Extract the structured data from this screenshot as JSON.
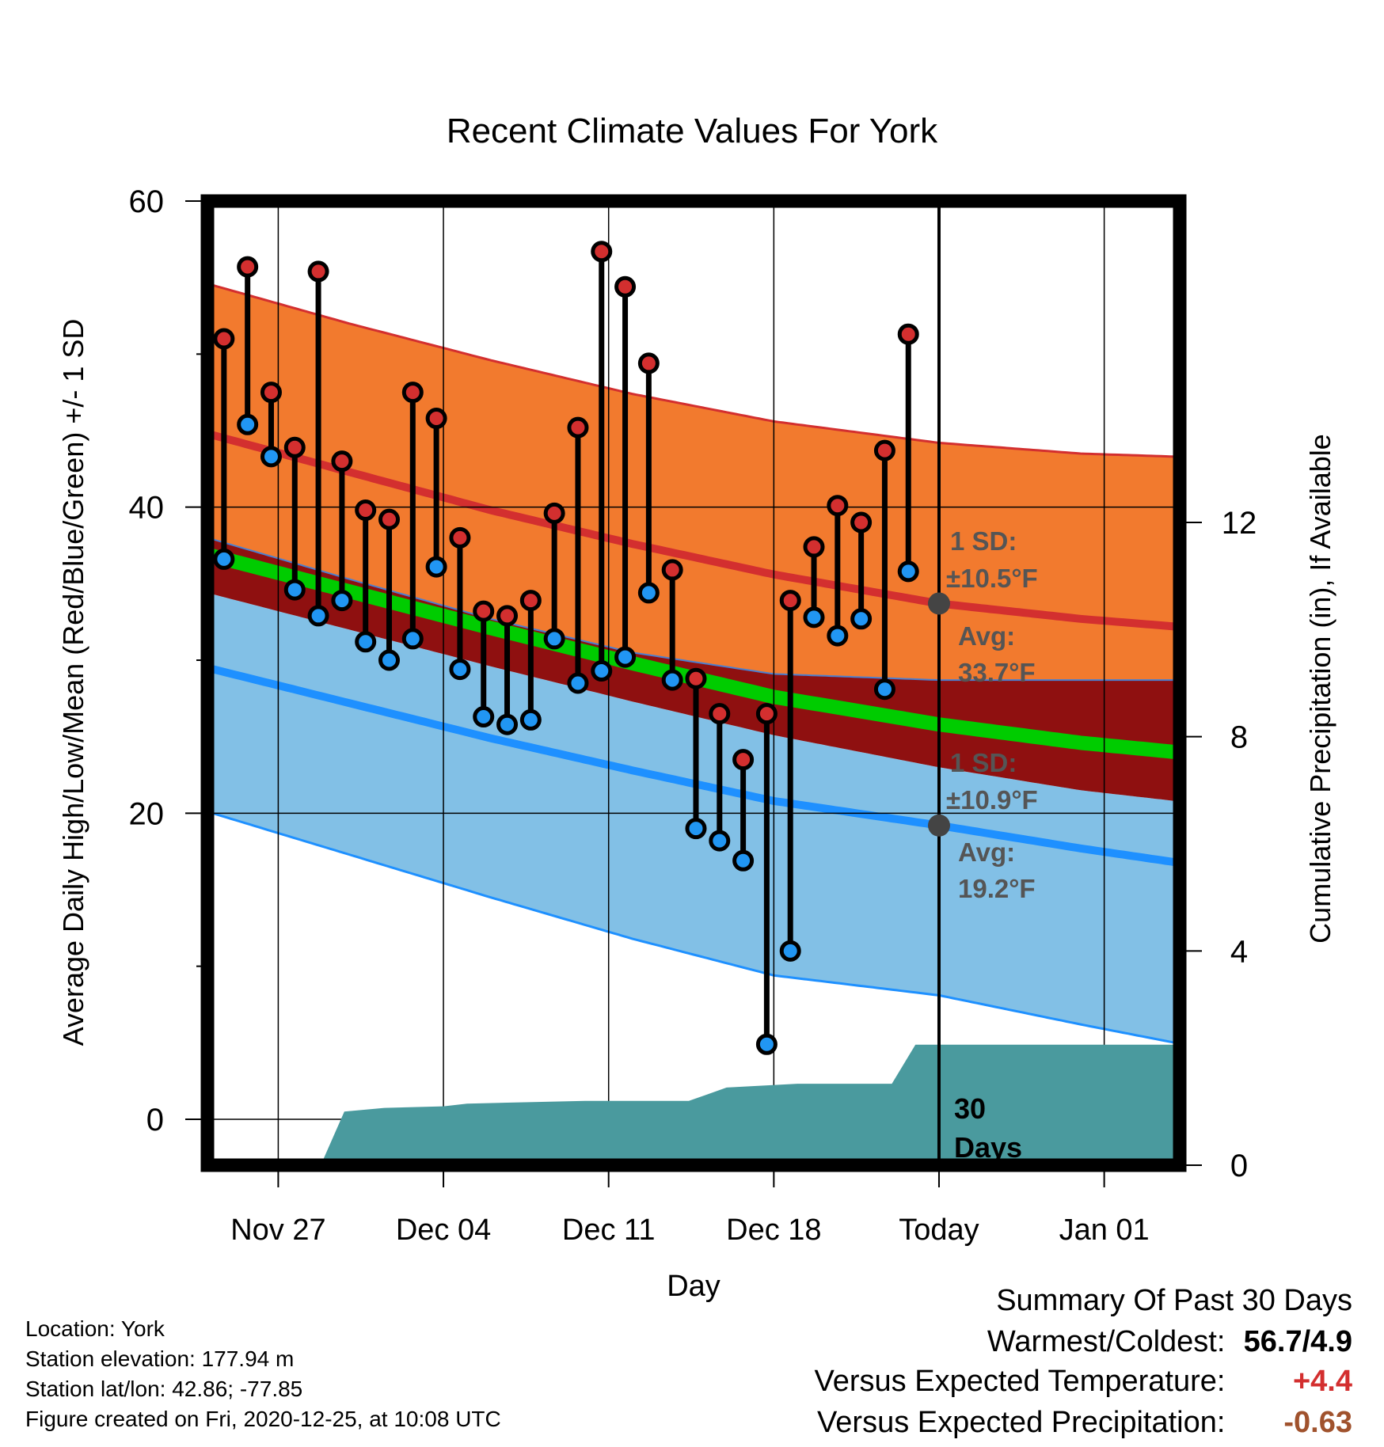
{
  "chart_data": {
    "type": "line",
    "title": "Recent Climate Values For York",
    "xlabel": "Day",
    "ylabel": "Average Daily High/Low/Mean (Red/Blue/Green) +/- 1 SD",
    "y2label": "Cumulative Precipitation (in), If Available",
    "ylim": [
      -3,
      60
    ],
    "y2lim": [
      0,
      18
    ],
    "xticks": [
      {
        "day": 3,
        "label": "Nov 27"
      },
      {
        "day": 10,
        "label": "Dec 04"
      },
      {
        "day": 17,
        "label": "Dec 11"
      },
      {
        "day": 24,
        "label": "Dec 18"
      },
      {
        "day": 31,
        "label": "Today"
      },
      {
        "day": 38,
        "label": "Jan 01"
      }
    ],
    "yticks": [
      0,
      20,
      40,
      60
    ],
    "y2ticks": [
      0,
      4,
      8,
      12
    ],
    "grid": true,
    "x_domain": [
      0,
      41.2
    ],
    "normal_high": {
      "days": [
        0,
        6,
        12,
        18,
        24,
        31,
        37,
        41
      ],
      "mean": [
        44.8,
        42.3,
        39.8,
        37.6,
        35.6,
        33.7,
        32.7,
        32.2
      ],
      "upper": [
        54.6,
        52.0,
        49.6,
        47.4,
        45.6,
        44.2,
        43.5,
        43.3
      ],
      "lower": [
        38.0,
        35.3,
        32.7,
        30.5,
        29.1,
        28.7,
        28.7,
        28.7
      ]
    },
    "normal_low": {
      "days": [
        0,
        6,
        12,
        18,
        24,
        31,
        37,
        41
      ],
      "mean": [
        29.5,
        27.2,
        24.9,
        22.8,
        20.8,
        19.2,
        17.7,
        16.8
      ],
      "upper": [
        34.4,
        32.0,
        29.6,
        27.3,
        25.1,
        23.0,
        21.5,
        20.8
      ],
      "lower": [
        20.1,
        17.3,
        14.5,
        11.8,
        9.4,
        8.1,
        6.2,
        5.0
      ]
    },
    "normal_mean": {
      "days": [
        0,
        6,
        12,
        18,
        24,
        31,
        37,
        41
      ],
      "mean": [
        36.9,
        34.5,
        32.1,
        29.8,
        27.6,
        25.8,
        24.6,
        24.0
      ]
    },
    "days": [
      0.7,
      1.7,
      2.7,
      3.7,
      4.7,
      5.7,
      6.7,
      7.7,
      8.7,
      9.7,
      10.7,
      11.7,
      12.7,
      13.7,
      14.7,
      15.7,
      16.7,
      17.7,
      18.7,
      19.7,
      20.7,
      21.7,
      22.7,
      23.7,
      24.7,
      25.7,
      26.7,
      27.7,
      28.7,
      29.7
    ],
    "series": [
      {
        "name": "High",
        "values": [
          51.0,
          55.7,
          47.5,
          43.9,
          55.4,
          43.0,
          39.8,
          39.2,
          47.5,
          45.8,
          38.0,
          33.2,
          32.9,
          33.9,
          39.6,
          45.2,
          56.7,
          54.4,
          49.4,
          35.9,
          28.8,
          26.5,
          23.5,
          26.5,
          33.9,
          37.4,
          40.1,
          39.0,
          43.7,
          51.3
        ]
      },
      {
        "name": "Low",
        "values": [
          36.6,
          45.4,
          43.3,
          34.6,
          32.9,
          33.9,
          31.2,
          30.0,
          31.4,
          36.1,
          29.4,
          26.3,
          25.8,
          26.1,
          31.4,
          28.5,
          29.3,
          30.2,
          34.4,
          28.7,
          19.0,
          18.2,
          16.9,
          4.9,
          11.0,
          32.8,
          31.6,
          32.7,
          28.1,
          35.8
        ]
      }
    ],
    "precipitation": {
      "days": [
        0,
        2,
        4.8,
        5.8,
        7.5,
        10,
        11,
        16,
        20.4,
        22,
        25,
        29,
        30,
        41.2
      ],
      "values": [
        0,
        0,
        0.0,
        1.0,
        1.07,
        1.1,
        1.15,
        1.2,
        1.2,
        1.45,
        1.52,
        1.52,
        2.25,
        2.25
      ]
    },
    "today_day": 31,
    "annotations": {
      "high_sd_1": "1 SD:",
      "high_sd_2": "±10.5°F",
      "high_avg_1": "Avg:",
      "high_avg_2": "33.7°F",
      "low_sd_1": "1 SD:",
      "low_sd_2": "±10.9°F",
      "low_avg_1": "Avg:",
      "low_avg_2": "19.2°F",
      "days_1": "30",
      "days_2": "Days"
    },
    "colors": {
      "high_band": "#f27a2e",
      "high_line": "#d32f2f",
      "low_band": "#82c0e6",
      "low_line": "#1e90ff",
      "overlap_band": "#8f1010",
      "mean_line": "#00cc00",
      "precip": "#4a9a9e",
      "high_dot": "#d32f2f",
      "low_dot": "#2196f3"
    }
  },
  "info": {
    "location": "Location: York",
    "elevation": "Station elevation: 177.94 m",
    "latlon": "Station lat/lon: 42.86; -77.85",
    "created": "Figure created on Fri, 2020-12-25, at 10:08 UTC"
  },
  "summary": {
    "title": "Summary Of Past 30 Days",
    "warmest_label": "Warmest/Coldest:",
    "warmest_value": "56.7/4.9",
    "temp_label": "Versus Expected Temperature:",
    "temp_value": "+4.4",
    "temp_color": "#d32f2f",
    "precip_label": "Versus Expected Precipitation:",
    "precip_value": "-0.63",
    "precip_color": "#a0522d"
  }
}
